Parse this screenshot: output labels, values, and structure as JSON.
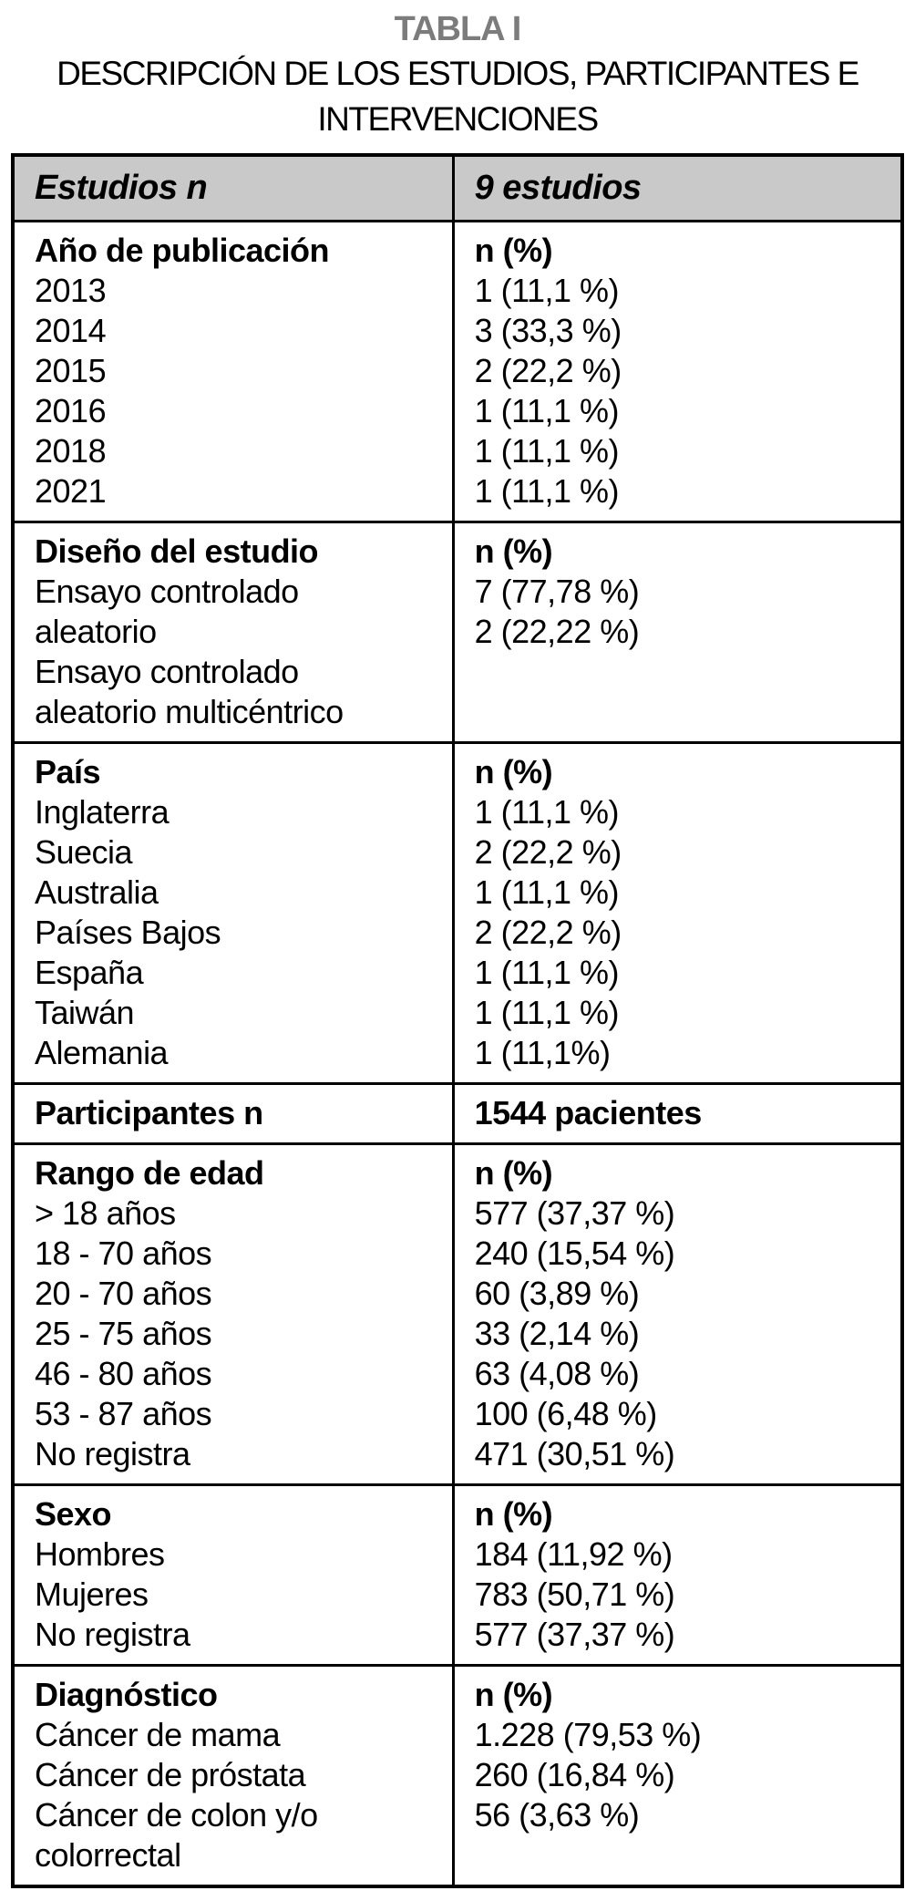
{
  "title": "TABLA I",
  "subtitle_lines": [
    "DESCRIPCIÓN DE LOS ESTUDIOS, PARTICIPANTES E",
    "INTERVENCIONES"
  ],
  "colors": {
    "title_gray": "#7c7c7c",
    "header_bg": "#c9c9c9",
    "border": "#000000",
    "text": "#000000"
  },
  "header": {
    "left": "Estudios n",
    "right": "9 estudios"
  },
  "sections": [
    {
      "left": [
        {
          "text": "Año de publicación",
          "bold": true
        },
        {
          "text": "2013"
        },
        {
          "text": "2014"
        },
        {
          "text": "2015"
        },
        {
          "text": "2016"
        },
        {
          "text": "2018"
        },
        {
          "text": "2021"
        }
      ],
      "right": [
        {
          "text": "n (%)",
          "bold": true
        },
        {
          "text": "1 (11,1 %)"
        },
        {
          "text": "3 (33,3 %)"
        },
        {
          "text": "2 (22,2 %)"
        },
        {
          "text": "1 (11,1 %)"
        },
        {
          "text": "1 (11,1 %)"
        },
        {
          "text": "1 (11,1 %)"
        }
      ]
    },
    {
      "left": [
        {
          "text": "Diseño del estudio",
          "bold": true
        },
        {
          "text": "Ensayo controlado"
        },
        {
          "text": "aleatorio"
        },
        {
          "text": "Ensayo controlado"
        },
        {
          "text": "aleatorio multicéntrico"
        }
      ],
      "right": [
        {
          "text": "n (%)",
          "bold": true
        },
        {
          "text": "7 (77,78 %)"
        },
        {
          "text": "2 (22,22 %)"
        }
      ]
    },
    {
      "left": [
        {
          "text": "País",
          "bold": true
        },
        {
          "text": "Inglaterra"
        },
        {
          "text": "Suecia"
        },
        {
          "text": "Australia"
        },
        {
          "text": "Países Bajos"
        },
        {
          "text": "España"
        },
        {
          "text": "Taiwán"
        },
        {
          "text": "Alemania"
        }
      ],
      "right": [
        {
          "text": "n (%)",
          "bold": true
        },
        {
          "text": "1 (11,1 %)"
        },
        {
          "text": "2 (22,2 %)"
        },
        {
          "text": "1 (11,1 %)"
        },
        {
          "text": "2 (22,2 %)"
        },
        {
          "text": "1 (11,1 %)"
        },
        {
          "text": "1 (11,1 %)"
        },
        {
          "text": "1 (11,1%)"
        }
      ]
    },
    {
      "left": [
        {
          "text": "Participantes n",
          "bold": true
        }
      ],
      "right": [
        {
          "text": "1544 pacientes",
          "bold": true
        }
      ]
    },
    {
      "left": [
        {
          "text": "Rango de edad",
          "bold": true
        },
        {
          "text": "> 18 años"
        },
        {
          "text": "18 - 70 años"
        },
        {
          "text": "20 - 70 años"
        },
        {
          "text": "25 - 75 años"
        },
        {
          "text": "46 - 80 años"
        },
        {
          "text": "53 - 87 años"
        },
        {
          "text": "No registra"
        }
      ],
      "right": [
        {
          "text": "n (%)",
          "bold": true
        },
        {
          "text": "577 (37,37 %)"
        },
        {
          "text": "240 (15,54 %)"
        },
        {
          "text": "60 (3,89 %)"
        },
        {
          "text": "33 (2,14 %)"
        },
        {
          "text": "63 (4,08 %)"
        },
        {
          "text": "100 (6,48 %)"
        },
        {
          "text": "471 (30,51 %)"
        }
      ]
    },
    {
      "left": [
        {
          "text": "Sexo",
          "bold": true
        },
        {
          "text": "Hombres"
        },
        {
          "text": "Mujeres"
        },
        {
          "text": "No registra"
        }
      ],
      "right": [
        {
          "text": "n (%)",
          "bold": true
        },
        {
          "text": "184 (11,92 %)"
        },
        {
          "text": "783 (50,71 %)"
        },
        {
          "text": "577 (37,37 %)"
        }
      ]
    },
    {
      "left": [
        {
          "text": "Diagnóstico",
          "bold": true
        },
        {
          "text": "Cáncer de mama"
        },
        {
          "text": "Cáncer de próstata"
        },
        {
          "text": "Cáncer de colon y/o"
        },
        {
          "text": "colorrectal"
        }
      ],
      "right": [
        {
          "text": "n (%)",
          "bold": true
        },
        {
          "text": "1.228 (79,53 %)"
        },
        {
          "text": "260 (16,84 %)"
        },
        {
          "text": "56 (3,63 %)"
        }
      ]
    }
  ]
}
